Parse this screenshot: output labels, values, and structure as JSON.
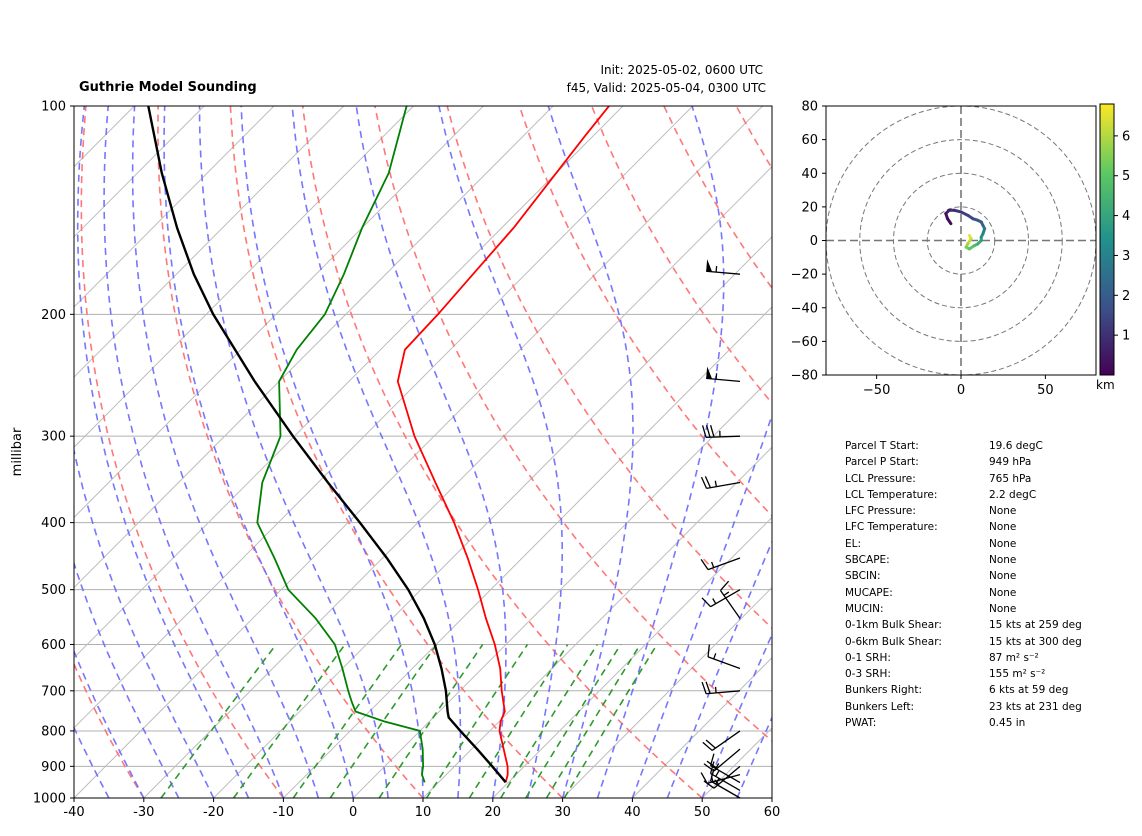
{
  "header": {
    "title": "Guthrie Model Sounding",
    "init": "Init: 2025-05-02, 0600 UTC",
    "valid": "f45, Valid: 2025-05-04, 0300 UTC"
  },
  "chart_data": [
    {
      "type": "line",
      "subtype": "skew-t",
      "title": "Guthrie Model Sounding",
      "xlabel": "",
      "ylabel": "millibar",
      "xlim": [
        -40,
        60
      ],
      "ylim": [
        1000,
        100
      ],
      "y_scale": "log",
      "x_ticks": [
        -40,
        -30,
        -20,
        -10,
        0,
        10,
        20,
        30,
        40,
        50,
        60
      ],
      "y_ticks": [
        100,
        200,
        300,
        400,
        500,
        600,
        700,
        800,
        900,
        1000
      ],
      "grid": true,
      "colors": {
        "temperature": "#ff0000",
        "dewpoint": "#008000",
        "parcel": "#000000",
        "dry_adiabats": "#ff7070",
        "moist_adiabats": "#6f6fff",
        "mixing_ratio": "#2e9a2e",
        "isotherms": "#bdbdbd"
      },
      "series": [
        {
          "key": "temperature",
          "pressure": [
            949,
            925,
            900,
            850,
            800,
            775,
            750,
            700,
            650,
            600,
            550,
            500,
            450,
            400,
            350,
            300,
            250,
            225,
            200,
            175,
            150,
            125,
            110,
            100
          ],
          "values": [
            19.6,
            18.8,
            17.6,
            14.6,
            11.4,
            10.2,
            9.4,
            6.0,
            2.6,
            -1.6,
            -6.6,
            -11.8,
            -17.8,
            -24.8,
            -33.2,
            -42.8,
            -53.0,
            -56.5,
            -56.8,
            -57.5,
            -58.3,
            -60.0,
            -61.2,
            -62.0
          ]
        },
        {
          "key": "dewpoint",
          "pressure": [
            949,
            925,
            900,
            850,
            800,
            775,
            750,
            725,
            700,
            650,
            600,
            550,
            500,
            450,
            400,
            350,
            300,
            250,
            225,
            200,
            175,
            150,
            125,
            110,
            100
          ],
          "values": [
            8.0,
            6.5,
            5.5,
            3.0,
            0.0,
            -6.5,
            -12.0,
            -14.0,
            -16.0,
            -20.0,
            -24.5,
            -31.0,
            -39.0,
            -45.5,
            -53.0,
            -58.0,
            -62.0,
            -70.0,
            -72.0,
            -73.0,
            -76.0,
            -80.0,
            -84.0,
            -88.0,
            -91.0
          ]
        },
        {
          "key": "parcel",
          "pressure": [
            949,
            900,
            850,
            800,
            765,
            750,
            700,
            650,
            600,
            550,
            500,
            450,
            400,
            350,
            300,
            250,
            200,
            175,
            150,
            125,
            100
          ],
          "values": [
            19.6,
            15.4,
            10.8,
            5.8,
            2.2,
            1.2,
            -2.0,
            -5.8,
            -10.2,
            -15.5,
            -21.8,
            -29.4,
            -38.3,
            -48.6,
            -60.2,
            -73.5,
            -89.0,
            -97.5,
            -106.5,
            -116.5,
            -128.0
          ]
        }
      ],
      "wind_barbs": [
        {
          "pressure": 1000,
          "speed_kts": 15,
          "direction_deg": 300
        },
        {
          "pressure": 975,
          "speed_kts": 15,
          "direction_deg": 300
        },
        {
          "pressure": 950,
          "speed_kts": 15,
          "direction_deg": 300
        },
        {
          "pressure": 925,
          "speed_kts": 15,
          "direction_deg": 255
        },
        {
          "pressure": 900,
          "speed_kts": 15,
          "direction_deg": 230
        },
        {
          "pressure": 850,
          "speed_kts": 20,
          "direction_deg": 230
        },
        {
          "pressure": 800,
          "speed_kts": 20,
          "direction_deg": 235
        },
        {
          "pressure": 700,
          "speed_kts": 25,
          "direction_deg": 265
        },
        {
          "pressure": 650,
          "speed_kts": 15,
          "direction_deg": 290
        },
        {
          "pressure": 550,
          "speed_kts": 15,
          "direction_deg": 325
        },
        {
          "pressure": 500,
          "speed_kts": 15,
          "direction_deg": 240
        },
        {
          "pressure": 450,
          "speed_kts": 15,
          "direction_deg": 250
        },
        {
          "pressure": 350,
          "speed_kts": 25,
          "direction_deg": 260
        },
        {
          "pressure": 300,
          "speed_kts": 35,
          "direction_deg": 268
        },
        {
          "pressure": 250,
          "speed_kts": 55,
          "direction_deg": 275
        },
        {
          "pressure": 175,
          "speed_kts": 55,
          "direction_deg": 275
        }
      ]
    },
    {
      "type": "line",
      "subtype": "hodograph",
      "xlim": [
        -80,
        80
      ],
      "ylim": [
        -80,
        80
      ],
      "x_ticks": [
        -50,
        0,
        50
      ],
      "y_ticks": [
        -80,
        -60,
        -40,
        -20,
        0,
        20,
        40,
        60,
        80
      ],
      "rings": [
        20,
        40,
        60,
        80
      ],
      "colorbar": {
        "label": "km",
        "range": [
          0,
          6.8
        ],
        "ticks": [
          1,
          2,
          3,
          4,
          5,
          6
        ],
        "colormap": "viridis"
      },
      "x": [
        5,
        6,
        4,
        3,
        5,
        8,
        10,
        12,
        12,
        13,
        14,
        13,
        12,
        10,
        7,
        4,
        0,
        -4,
        -7,
        -9,
        -8,
        -6
      ],
      "y": [
        3,
        1,
        -2,
        -4,
        -5,
        -3,
        -2,
        0,
        2,
        4,
        7,
        9,
        11,
        12,
        13,
        15,
        17,
        18,
        18,
        16,
        13,
        10
      ],
      "height_km": [
        6.8,
        6.4,
        6.0,
        5.6,
        5.2,
        4.8,
        4.4,
        4.0,
        3.6,
        3.2,
        2.8,
        2.4,
        2.0,
        1.8,
        1.6,
        1.4,
        1.2,
        1.0,
        0.8,
        0.5,
        0.3,
        0.1
      ]
    }
  ],
  "parameters": [
    {
      "label": "Parcel T Start:",
      "value": "19.6 degC"
    },
    {
      "label": "Parcel P Start:",
      "value": "949 hPa"
    },
    {
      "label": "LCL Pressure:",
      "value": "765 hPa"
    },
    {
      "label": "LCL Temperature:",
      "value": "2.2 degC"
    },
    {
      "label": "LFC Pressure:",
      "value": "None"
    },
    {
      "label": "LFC Temperature:",
      "value": "None"
    },
    {
      "label": "EL:",
      "value": "None"
    },
    {
      "label": "SBCAPE:",
      "value": "None"
    },
    {
      "label": "SBCIN:",
      "value": "None"
    },
    {
      "label": "MUCAPE:",
      "value": "None"
    },
    {
      "label": "MUCIN:",
      "value": "None"
    },
    {
      "label": "0-1km Bulk Shear:",
      "value": "15 kts at 259 deg"
    },
    {
      "label": "0-6km Bulk Shear:",
      "value": "15 kts at 300 deg"
    },
    {
      "label": "0-1 SRH:",
      "value": "87 m² s⁻²"
    },
    {
      "label": "0-3 SRH:",
      "value": "155 m² s⁻²"
    },
    {
      "label": "Bunkers Right:",
      "value": "6 kts at 59 deg"
    },
    {
      "label": "Bunkers Left:",
      "value": "23 kts at 231 deg"
    },
    {
      "label": "PWAT:",
      "value": "0.45 in"
    }
  ]
}
